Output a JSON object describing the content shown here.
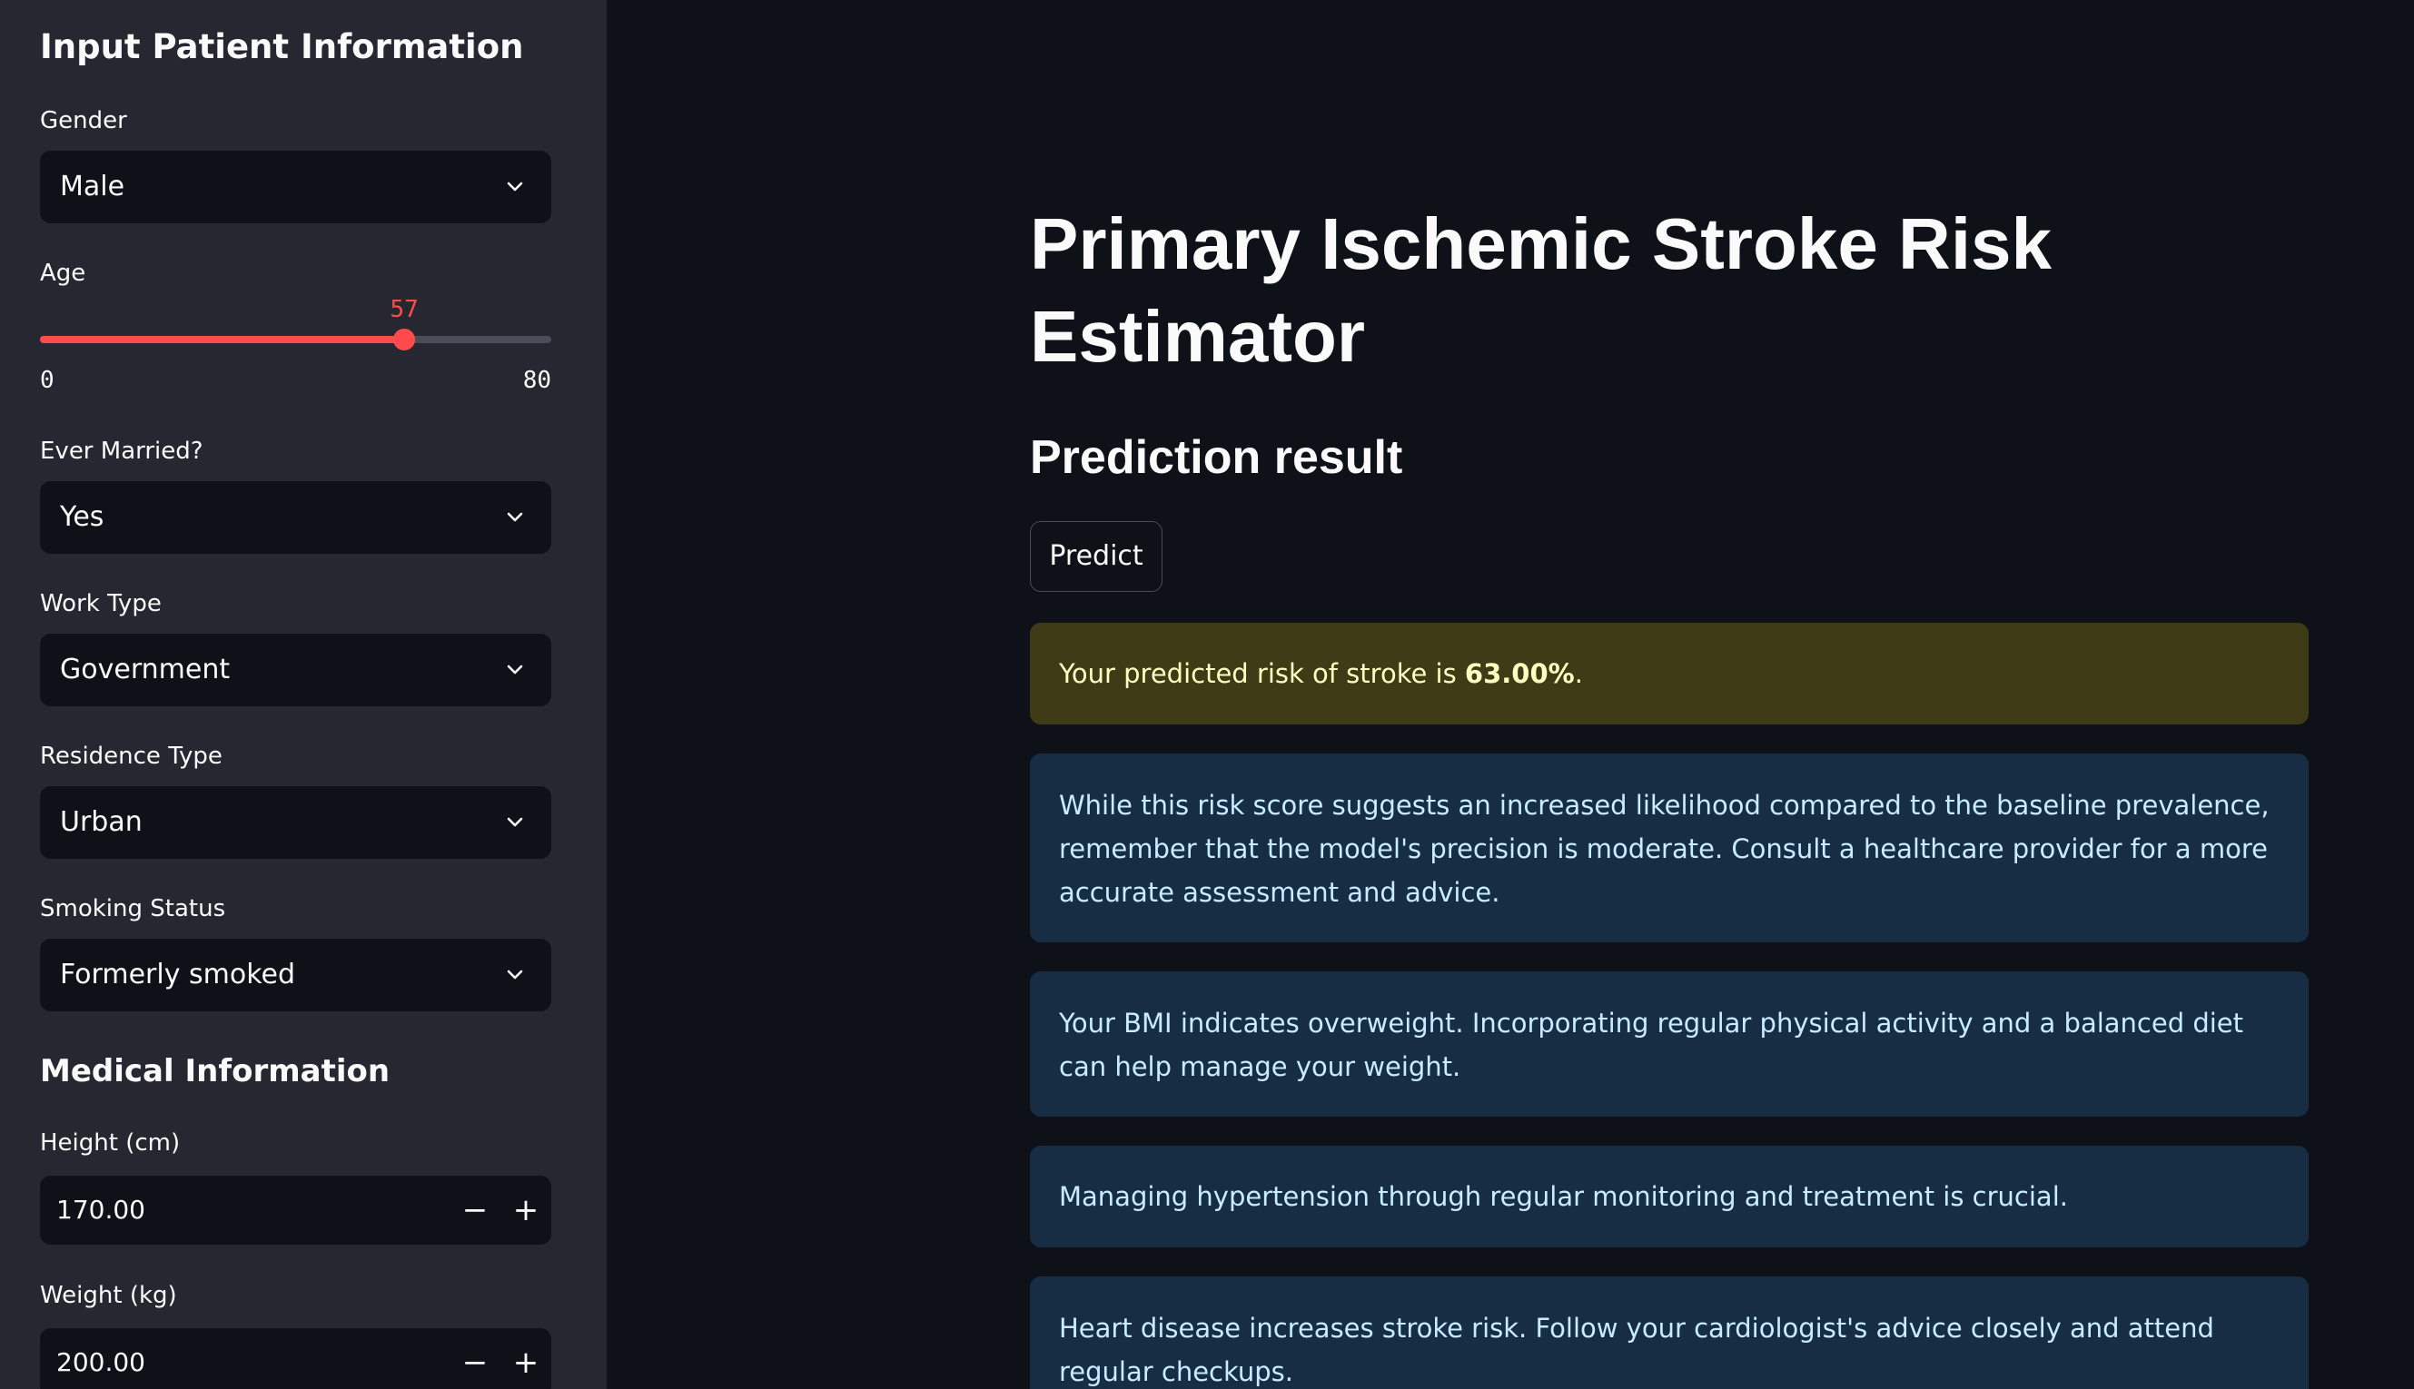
{
  "sidebar": {
    "title": "Input Patient Information",
    "gender": {
      "label": "Gender",
      "value": "Male"
    },
    "age": {
      "label": "Age",
      "value": "57",
      "min": "0",
      "max": "80",
      "fraction": 0.7125
    },
    "ever_married": {
      "label": "Ever Married?",
      "value": "Yes"
    },
    "work_type": {
      "label": "Work Type",
      "value": "Government"
    },
    "residence_type": {
      "label": "Residence Type",
      "value": "Urban"
    },
    "smoking_status": {
      "label": "Smoking Status",
      "value": "Formerly smoked"
    },
    "medical_section": "Medical Information",
    "height": {
      "label": "Height (cm)",
      "value": "170.00",
      "minus": "−",
      "plus": "+"
    },
    "weight": {
      "label": "Weight (kg)",
      "value": "200.00",
      "minus": "−",
      "plus": "+"
    }
  },
  "main": {
    "title": "Primary Ischemic Stroke Risk Estimator",
    "subtitle": "Prediction result",
    "predict_button": "Predict",
    "risk": {
      "prefix": "Your predicted risk of stroke is ",
      "value": "63.00%",
      "suffix": "."
    },
    "messages": [
      "While this risk score suggests an increased likelihood compared to the baseline prevalence, remember that the model's precision is moderate. Consult a healthcare provider for a more accurate assessment and advice.",
      "Your BMI indicates overweight. Incorporating regular physical activity and a balanced diet can help manage your weight.",
      "Managing hypertension through regular monitoring and treatment is crucial.",
      "Heart disease increases stroke risk. Follow your cardiologist's advice closely and attend regular checkups."
    ]
  },
  "colors": {
    "accent": "#ff4b4b",
    "background": "#0e1117",
    "sidebar": "#262730",
    "warning_bg": "#3e3b16",
    "info_bg": "#172d43"
  }
}
